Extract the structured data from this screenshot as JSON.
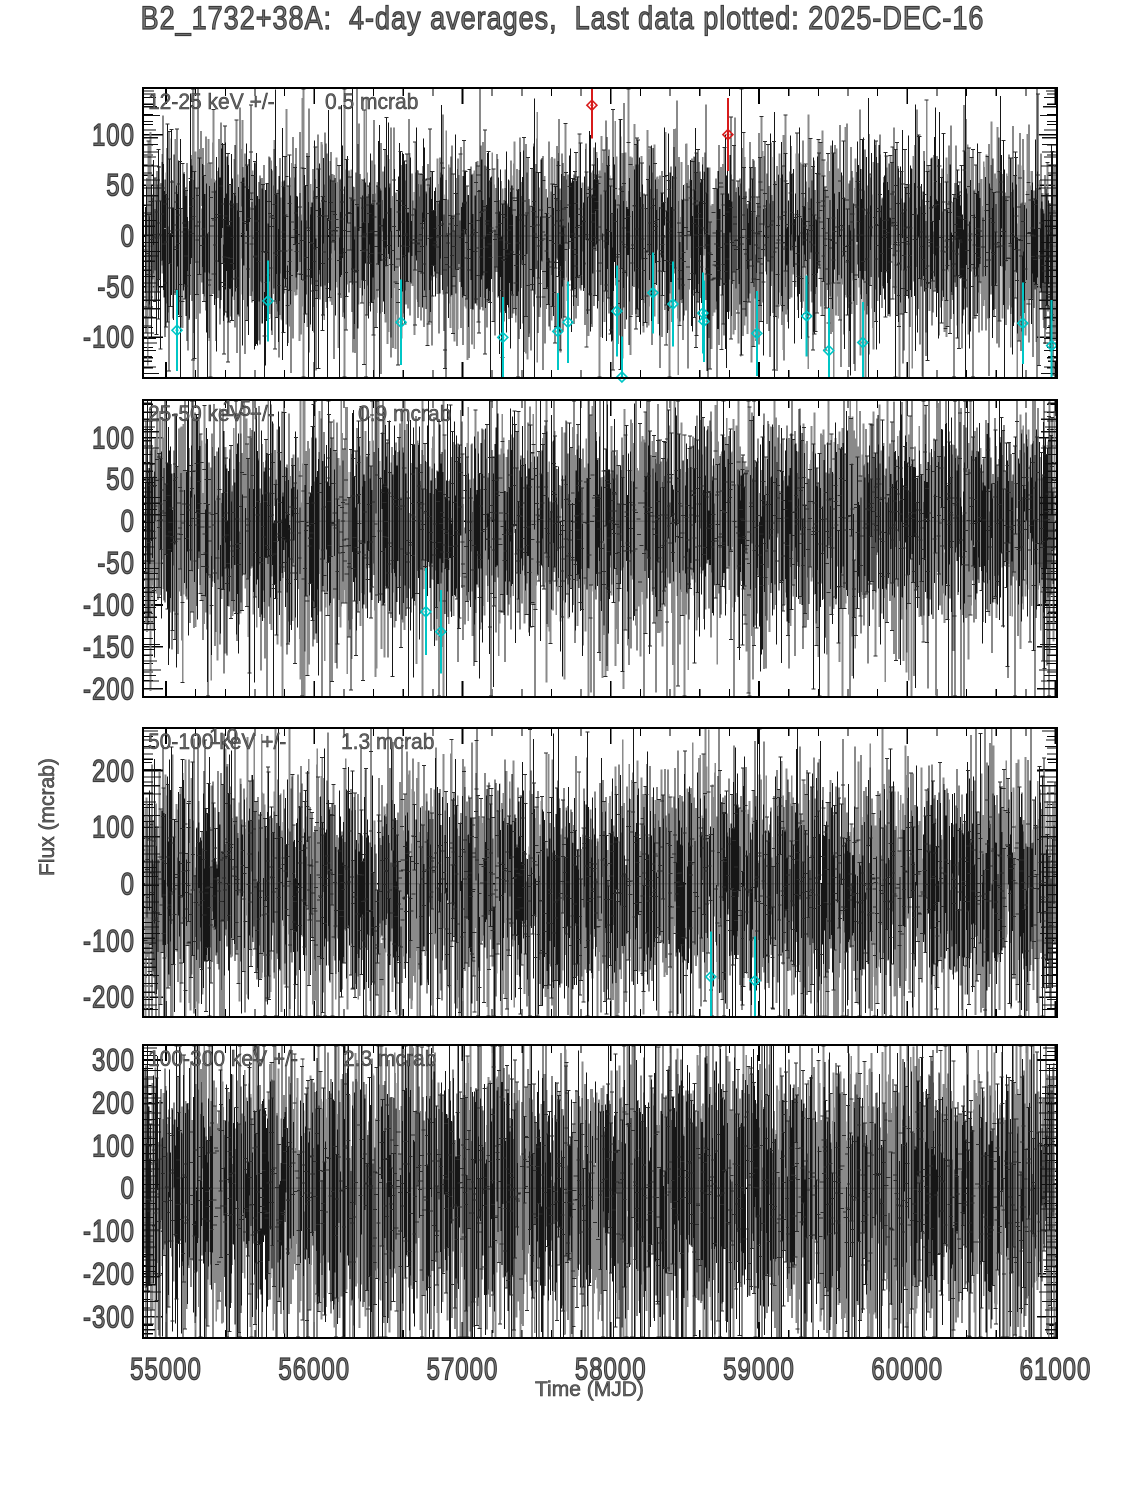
{
  "chart_data": {
    "type": "scatter",
    "title": "B2_1732+38A:  4-day averages,  Last data plotted: 2025-DEC-16",
    "xlabel": "Time (MJD)",
    "ylabel": "Flux (mcrab)",
    "xlim": [
      54845,
      61010
    ],
    "x_tick_labels": [
      "55000",
      "56000",
      "57000",
      "58000",
      "59000",
      "60000",
      "61000"
    ],
    "x_minor_step": 200,
    "n_points": 1550,
    "grid": false,
    "legend": "none",
    "marker_style": "vertical error bars, black/gray, consistent with zero flux",
    "outlier_high_color": "#d81b1b",
    "outlier_low_color": "#00c6c6",
    "panels": [
      {
        "band_label": "12-25 keV +/-",
        "err_label": "0.5 mcrab",
        "stray": "",
        "ylim": [
          -140,
          146
        ],
        "ytick_labels": [
          "100",
          "50",
          "0",
          "-50",
          "-100"
        ],
        "y_minor_step": 10,
        "noise_sigma": 25,
        "err_mean": 40,
        "err_spread": 16,
        "outliers": [
          {
            "mjd": 57873,
            "flux": 129,
            "err": 33,
            "type": "high"
          },
          {
            "mjd": 58790,
            "flux": 100,
            "err": 36,
            "type": "high"
          },
          {
            "mjd": 55074,
            "flux": -93,
            "err": 40,
            "type": "low"
          },
          {
            "mjd": 55688,
            "flux": -64,
            "err": 40,
            "type": "low"
          },
          {
            "mjd": 56585,
            "flux": -85,
            "err": 42,
            "type": "low"
          },
          {
            "mjd": 57272,
            "flux": -100,
            "err": 40,
            "type": "low"
          },
          {
            "mjd": 57643,
            "flux": -94,
            "err": 38,
            "type": "low"
          },
          {
            "mjd": 57711,
            "flux": -85,
            "err": 40,
            "type": "low"
          },
          {
            "mjd": 58041,
            "flux": -74,
            "err": 45,
            "type": "low"
          },
          {
            "mjd": 58075,
            "flux": -139,
            "err": 40,
            "type": "low"
          },
          {
            "mjd": 58284,
            "flux": -56,
            "err": 40,
            "type": "low"
          },
          {
            "mjd": 58419,
            "flux": -67,
            "err": 42,
            "type": "low"
          },
          {
            "mjd": 58621,
            "flux": -76,
            "err": 40,
            "type": "low"
          },
          {
            "mjd": 58628,
            "flux": -84,
            "err": 40,
            "type": "low"
          },
          {
            "mjd": 58985,
            "flux": -96,
            "err": 42,
            "type": "low"
          },
          {
            "mjd": 59322,
            "flux": -79,
            "err": 40,
            "type": "low"
          },
          {
            "mjd": 59471,
            "flux": -113,
            "err": 42,
            "type": "low"
          },
          {
            "mjd": 59700,
            "flux": -105,
            "err": 40,
            "type": "low"
          },
          {
            "mjd": 60779,
            "flux": -86,
            "err": 40,
            "type": "low"
          },
          {
            "mjd": 60974,
            "flux": -108,
            "err": 45,
            "type": "low"
          }
        ]
      },
      {
        "band_label": "25-50 keV +/-",
        "err_label": "0.9 mcrab",
        "stray": "1.5",
        "ylim": [
          -210,
          145
        ],
        "ytick_labels": [
          "100",
          "50",
          "0",
          "-50",
          "-100",
          "-150",
          "-200"
        ],
        "y_minor_step": 10,
        "noise_sigma": 34,
        "err_mean": 55,
        "err_spread": 22,
        "outliers": [
          {
            "mjd": 56753,
            "flux": -108,
            "err": 52,
            "type": "low"
          },
          {
            "mjd": 56854,
            "flux": -132,
            "err": 50,
            "type": "low"
          }
        ]
      },
      {
        "band_label": "50-100 keV +/-",
        "err_label": "1.3 mcrab",
        "stray": "1.0",
        "ylim": [
          -235,
          275
        ],
        "ytick_labels": [
          "200",
          "100",
          "0",
          "-100",
          "-200"
        ],
        "y_minor_step": 20,
        "noise_sigma": 55,
        "err_mean": 85,
        "err_spread": 35,
        "outliers": [
          {
            "mjd": 58675,
            "flux": -164,
            "err": 80,
            "type": "low"
          },
          {
            "mjd": 58972,
            "flux": -171,
            "err": 78,
            "type": "low"
          }
        ]
      },
      {
        "band_label": "100-300 keV +/-",
        "err_label": "2.3 mcrab",
        "stray": "1",
        "ylim": [
          -350,
          335
        ],
        "ytick_labels": [
          "300",
          "200",
          "100",
          "0",
          "-100",
          "-200",
          "-300"
        ],
        "y_minor_step": 20,
        "noise_sigma": 80,
        "err_mean": 140,
        "err_spread": 55,
        "outliers": []
      }
    ]
  }
}
